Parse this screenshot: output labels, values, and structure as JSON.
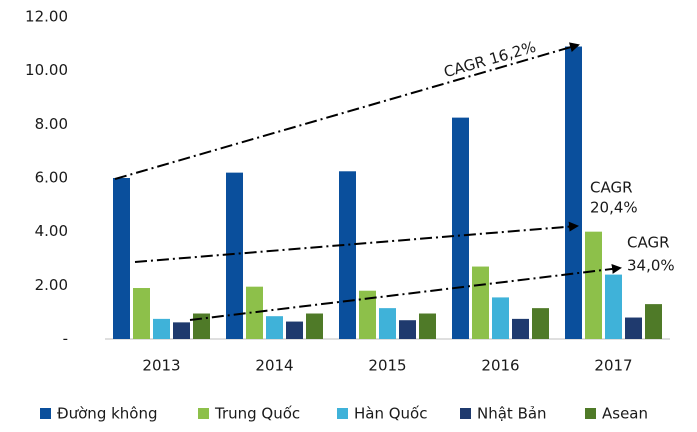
{
  "chart_data": {
    "type": "bar",
    "categories": [
      "2013",
      "2014",
      "2015",
      "2016",
      "2017"
    ],
    "series": [
      {
        "name": "Đường không",
        "color": "#0a4f9c",
        "values": [
          6.0,
          6.2,
          6.25,
          8.25,
          10.9
        ]
      },
      {
        "name": "Trung Quốc",
        "color": "#8dc04a",
        "values": [
          1.9,
          1.95,
          1.8,
          2.7,
          4.0
        ]
      },
      {
        "name": "Hàn Quốc",
        "color": "#3fb2d9",
        "values": [
          0.75,
          0.85,
          1.15,
          1.55,
          2.4
        ]
      },
      {
        "name": "Nhật Bản",
        "color": "#1f3a6e",
        "values": [
          0.62,
          0.65,
          0.7,
          0.75,
          0.8
        ]
      },
      {
        "name": "Asean",
        "color": "#4f7a28",
        "values": [
          0.95,
          0.95,
          0.95,
          1.15,
          1.3
        ]
      }
    ],
    "ylim": [
      0,
      12
    ],
    "yticks": [
      {
        "value": 0,
        "label": "-"
      },
      {
        "value": 2,
        "label": "2.00"
      },
      {
        "value": 4,
        "label": "4.00"
      },
      {
        "value": 6,
        "label": "6.00"
      },
      {
        "value": 8,
        "label": "8.00"
      },
      {
        "value": 10,
        "label": "10.00"
      },
      {
        "value": 12,
        "label": "12.00"
      }
    ],
    "grid": false,
    "legend": "bottom",
    "annotations": [
      {
        "text": "CAGR 16,2%"
      },
      {
        "text": [
          "CAGR",
          "20,4%"
        ]
      },
      {
        "text": [
          "CAGR",
          "34,0%"
        ]
      }
    ]
  }
}
